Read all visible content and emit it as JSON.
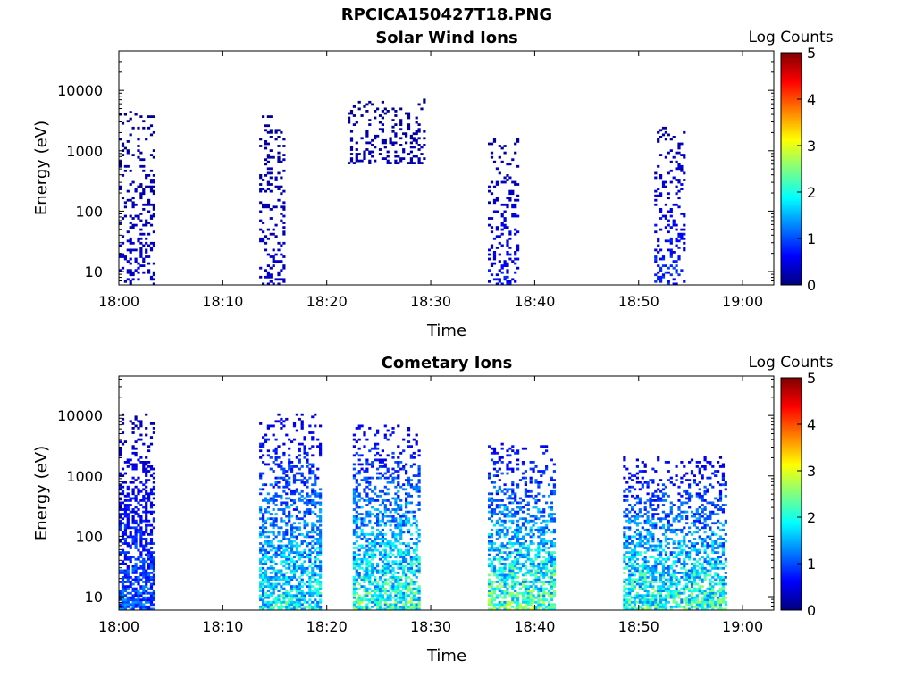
{
  "figure_title": "RPCICA150427T18.PNG",
  "colors": {
    "background": "#ffffff",
    "axis": "#000000",
    "colormap": [
      "#00007f",
      "#0000ff",
      "#007fff",
      "#00ffff",
      "#7fff7f",
      "#ffff00",
      "#ff7f00",
      "#ff0000",
      "#7f0000"
    ]
  },
  "chart_data": [
    {
      "type": "heatmap",
      "title": "Solar Wind Ions",
      "xlabel": "Time",
      "ylabel": "Energy (eV)",
      "x_unit": "minutes after 18:00",
      "xlim": [
        0,
        63
      ],
      "x_ticks": [
        0,
        10,
        20,
        30,
        40,
        50,
        60
      ],
      "x_tick_labels": [
        "18:00",
        "18:10",
        "18:20",
        "18:30",
        "18:40",
        "18:50",
        "19:00"
      ],
      "y_scale": "log",
      "ylim": [
        6,
        45000
      ],
      "y_ticks": [
        10,
        100,
        1000,
        10000
      ],
      "y_tick_labels": [
        "10",
        "100",
        "1000",
        "10000"
      ],
      "colorbar": {
        "label": "Log Counts",
        "range": [
          0,
          5
        ],
        "ticks": [
          "0",
          "1",
          "2",
          "3",
          "4",
          "5"
        ]
      },
      "bursts": [
        {
          "t_start": 0.0,
          "t_end": 3.5,
          "e_low": 6,
          "e_high": 4500,
          "level": 0.3
        },
        {
          "t_start": 13.5,
          "t_end": 16.0,
          "e_low": 6,
          "e_high": 4500,
          "level": 0.3
        },
        {
          "t_start": 22.0,
          "t_end": 29.5,
          "e_low": 600,
          "e_high": 7000,
          "level": 0.2
        },
        {
          "t_start": 35.5,
          "t_end": 38.5,
          "e_low": 6,
          "e_high": 1500,
          "level": 0.5
        },
        {
          "t_start": 51.5,
          "t_end": 54.5,
          "e_low": 6,
          "e_high": 2500,
          "level": 0.6
        }
      ]
    },
    {
      "type": "heatmap",
      "title": "Cometary Ions",
      "xlabel": "Time",
      "ylabel": "Energy (eV)",
      "x_unit": "minutes after 18:00",
      "xlim": [
        0,
        63
      ],
      "x_ticks": [
        0,
        10,
        20,
        30,
        40,
        50,
        60
      ],
      "x_tick_labels": [
        "18:00",
        "18:10",
        "18:20",
        "18:30",
        "18:40",
        "18:50",
        "19:00"
      ],
      "y_scale": "log",
      "ylim": [
        6,
        45000
      ],
      "y_ticks": [
        10,
        100,
        1000,
        10000
      ],
      "y_tick_labels": [
        "10",
        "100",
        "1000",
        "10000"
      ],
      "colorbar": {
        "label": "Log Counts",
        "range": [
          0,
          5
        ],
        "ticks": [
          "0",
          "1",
          "2",
          "3",
          "4",
          "5"
        ]
      },
      "bursts": [
        {
          "t_start": 0.0,
          "t_end": 3.5,
          "e_low": 6,
          "e_high": 10000,
          "level": 0.8
        },
        {
          "t_start": 13.5,
          "t_end": 19.5,
          "e_low": 6,
          "e_high": 10000,
          "level": 1.4
        },
        {
          "t_start": 22.5,
          "t_end": 29.0,
          "e_low": 6,
          "e_high": 7000,
          "level": 1.6
        },
        {
          "t_start": 35.5,
          "t_end": 42.0,
          "e_low": 6,
          "e_high": 3500,
          "level": 1.7
        },
        {
          "t_start": 48.5,
          "t_end": 58.5,
          "e_low": 6,
          "e_high": 2000,
          "level": 1.6
        }
      ]
    }
  ]
}
